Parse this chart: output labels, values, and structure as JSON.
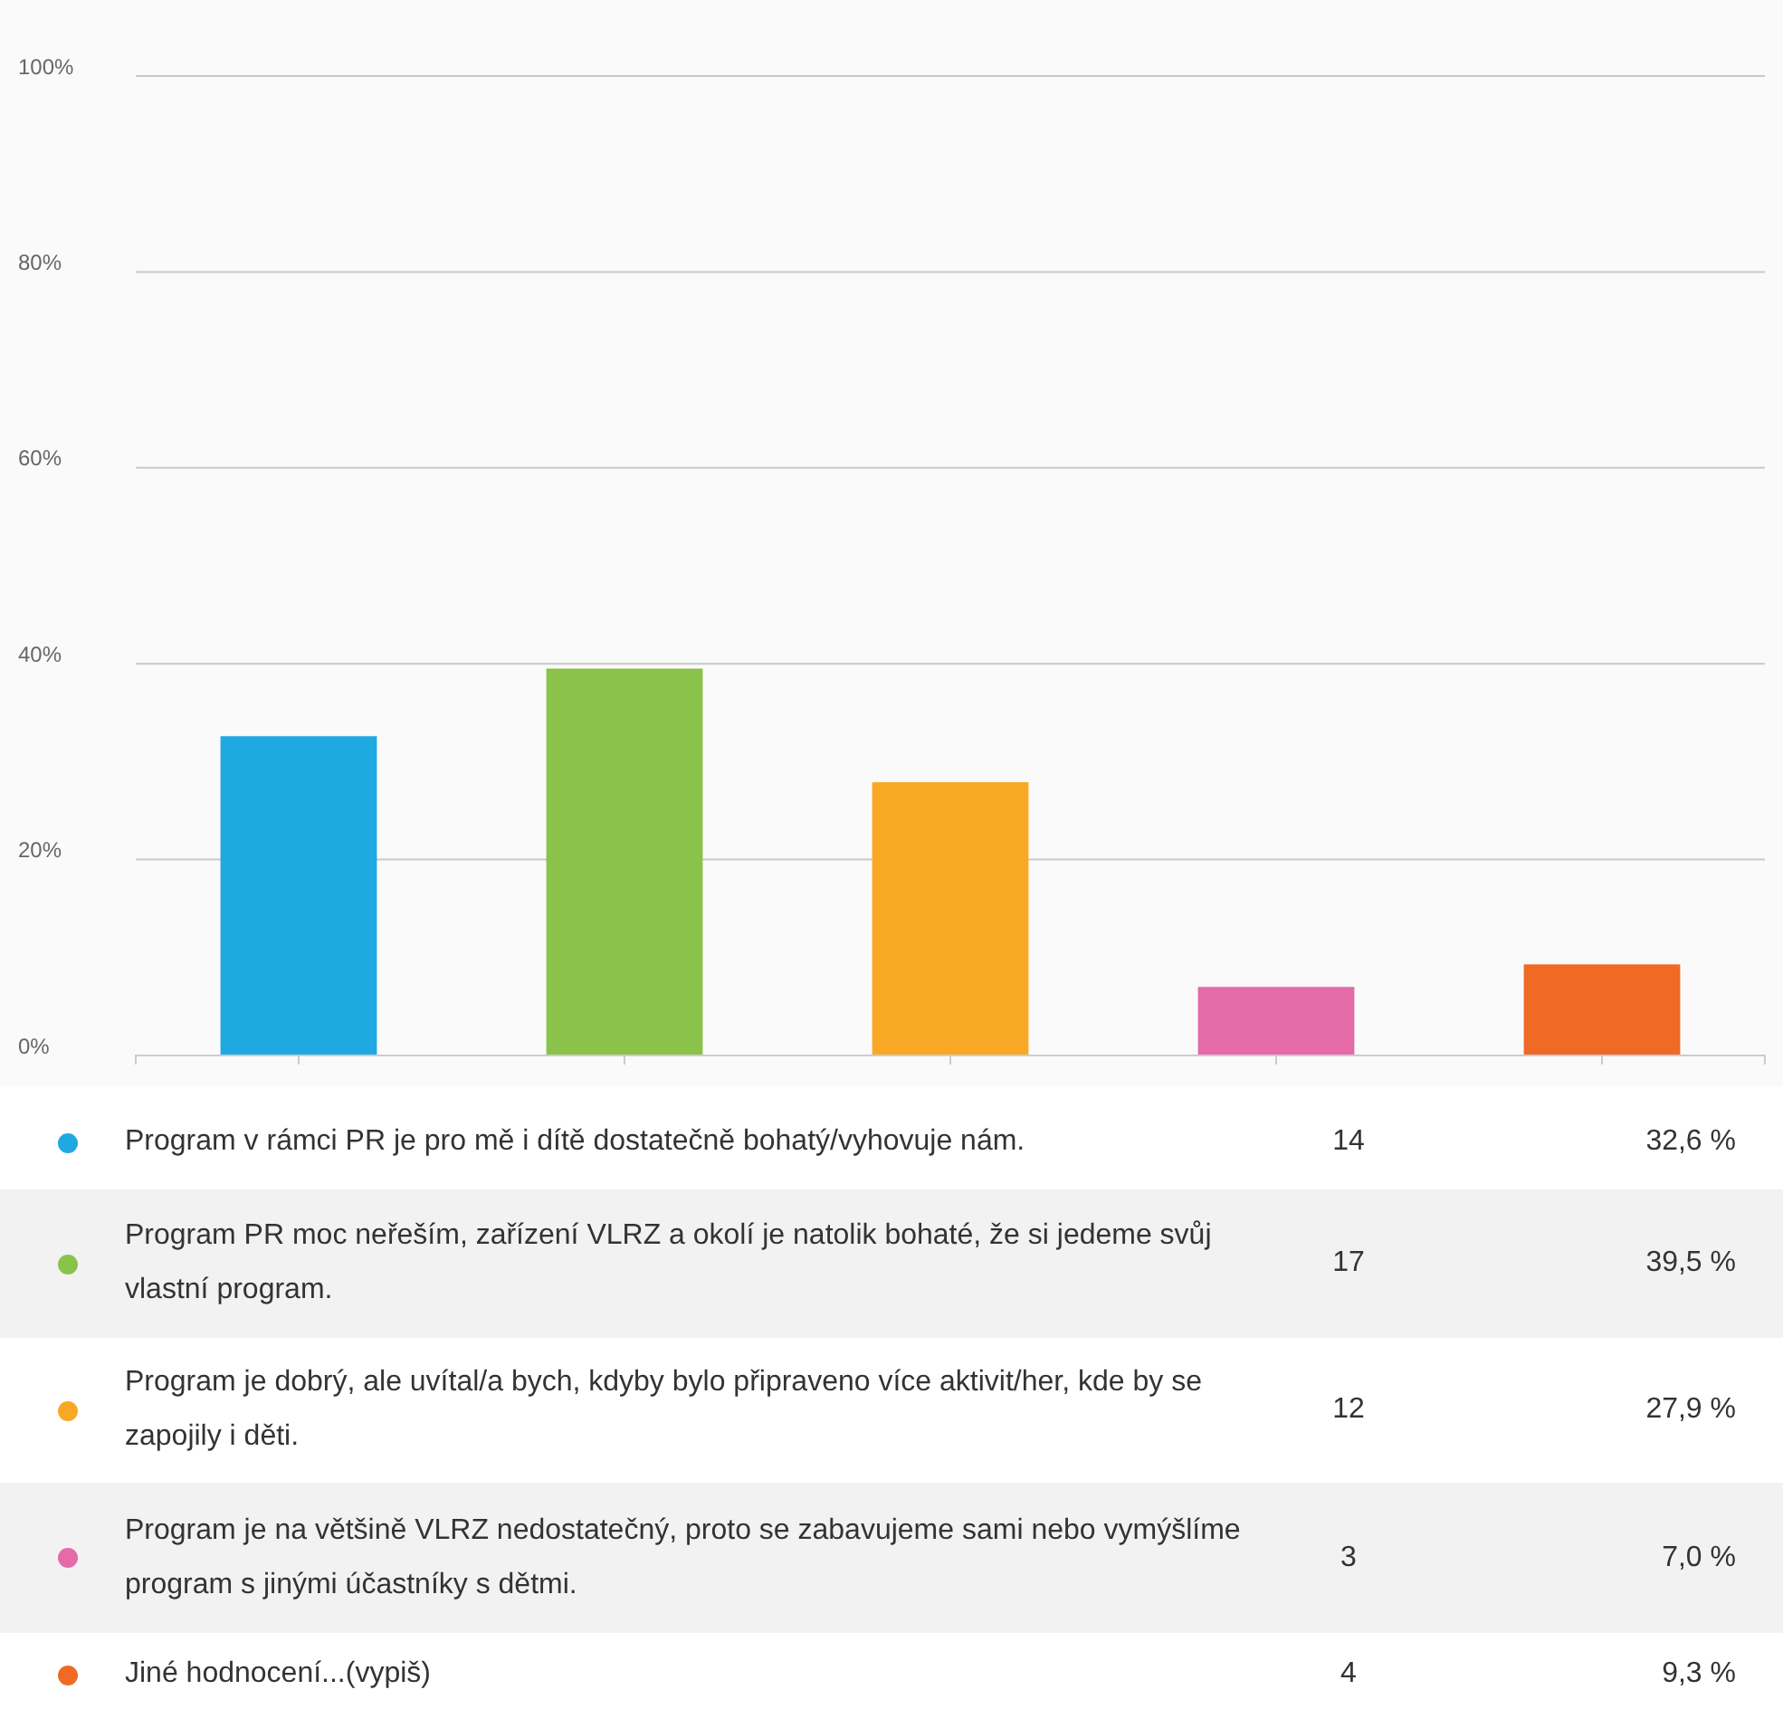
{
  "chart_data": {
    "type": "bar",
    "categories": [
      null,
      null,
      null,
      null,
      null
    ],
    "series": [
      {
        "name": "Program v rámci PR je pro mě i dítě dostatečně bohatý/vyhovuje nám.",
        "color": "#1ea9e1",
        "values": [
          32.6,
          null,
          null,
          null,
          null
        ]
      },
      {
        "name": "Program PR moc neřeším, zařízení VLRZ a okolí je natolik bohaté, že si jedeme svůj vlastní program.",
        "color": "#8bc34a",
        "values": [
          null,
          39.5,
          null,
          null,
          null
        ]
      },
      {
        "name": "Program je dobrý, ale uvítal/a bych, kdyby bylo připraveno více aktivit/her, kde by se zapojily i děti.",
        "color": "#f9a825",
        "values": [
          null,
          null,
          27.9,
          null,
          null
        ]
      },
      {
        "name": "Program je na většině VLRZ nedostatečný, proto se zabavujeme sami nebo vymýšlíme program s jinými účastníky s dětmi.",
        "color": "#e46aa8",
        "values": [
          null,
          null,
          null,
          7.0,
          null
        ]
      },
      {
        "name": "Jiné hodnocení...(vypiš)",
        "color": "#f06a26",
        "values": [
          null,
          null,
          null,
          null,
          9.3
        ]
      }
    ],
    "annotations": [
      "14",
      "32,6 %",
      "17",
      "39,5 %",
      "12",
      "27,9 %",
      "3",
      "7,0 %",
      "4",
      "9,3 %"
    ],
    "ylim": [
      0,
      100
    ],
    "yticks": [
      {
        "value": 0,
        "label": "0%"
      },
      {
        "value": 20,
        "label": "20%"
      },
      {
        "value": 40,
        "label": "40%"
      },
      {
        "value": 60,
        "label": "60%"
      },
      {
        "value": 80,
        "label": "80%"
      },
      {
        "value": 100,
        "label": "100%"
      }
    ],
    "grid": "y",
    "legend": "bottom",
    "tick_labels": "y"
  }
}
